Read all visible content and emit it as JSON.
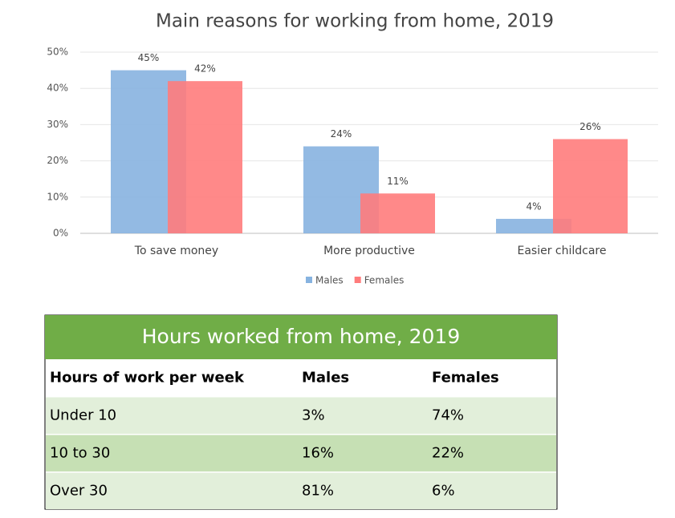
{
  "chart_data": {
    "type": "bar",
    "title": "Main reasons for working from home, 2019",
    "categories": [
      "To save money",
      "More productive",
      "Easier childcare"
    ],
    "series": [
      {
        "name": "Males",
        "color": "#87b3e0",
        "values": [
          45,
          24,
          4
        ],
        "value_labels": [
          "45%",
          "24%",
          "4%"
        ]
      },
      {
        "name": "Females",
        "color": "#ff7c7c",
        "values": [
          42,
          11,
          26
        ],
        "value_labels": [
          "42%",
          "11%",
          "26%"
        ]
      }
    ],
    "ylim": [
      0,
      50
    ],
    "yticks": [
      {
        "value": 0,
        "label": "0%"
      },
      {
        "value": 10,
        "label": "10%"
      },
      {
        "value": 20,
        "label": "20%"
      },
      {
        "value": 30,
        "label": "30%"
      },
      {
        "value": 40,
        "label": "40%"
      },
      {
        "value": 50,
        "label": "50%"
      }
    ],
    "grid": true,
    "legend": "bottom"
  },
  "table": {
    "title": "Hours worked from home, 2019",
    "columns": [
      "Hours of work per week",
      "Males",
      "Females"
    ],
    "rows": [
      [
        "Under 10",
        "3%",
        "74%"
      ],
      [
        "10 to 30",
        "16%",
        "22%"
      ],
      [
        "Over 30",
        "81%",
        "6%"
      ]
    ]
  }
}
